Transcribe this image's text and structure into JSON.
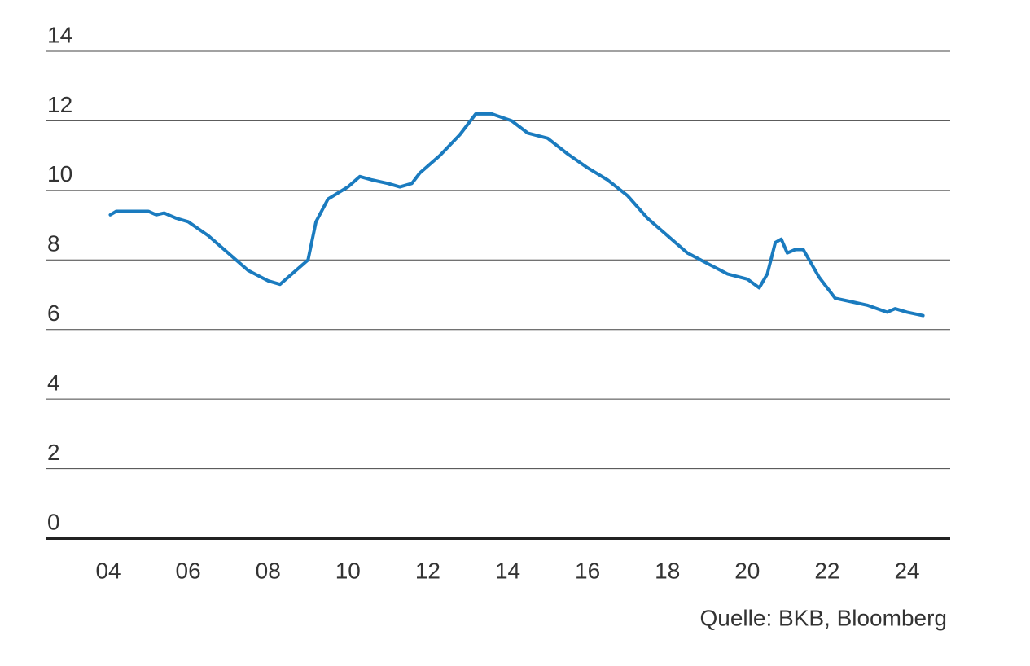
{
  "chart_data": {
    "type": "line",
    "source": "Quelle: BKB, Bloomberg",
    "x": [
      4.05,
      4.2,
      5.0,
      5.2,
      5.4,
      5.5,
      5.7,
      6.0,
      6.5,
      7.0,
      7.5,
      8.0,
      8.3,
      8.5,
      9.0,
      9.2,
      9.5,
      10.0,
      10.3,
      10.6,
      11.0,
      11.3,
      11.6,
      11.8,
      12.3,
      12.8,
      13.2,
      13.6,
      14.1,
      14.5,
      15.0,
      15.5,
      16.0,
      16.5,
      17.0,
      17.5,
      18.0,
      18.5,
      19.0,
      19.5,
      20.0,
      20.3,
      20.5,
      20.7,
      20.85,
      21.0,
      21.2,
      21.4,
      21.8,
      22.2,
      22.6,
      23.0,
      23.5,
      23.7,
      24.0,
      24.4
    ],
    "values": [
      9.3,
      9.4,
      9.4,
      9.3,
      9.35,
      9.3,
      9.2,
      9.1,
      8.7,
      8.2,
      7.7,
      7.4,
      7.3,
      7.5,
      8.0,
      9.1,
      9.75,
      10.1,
      10.4,
      10.3,
      10.2,
      10.1,
      10.2,
      10.5,
      11.0,
      11.6,
      12.2,
      12.2,
      12.0,
      11.65,
      11.5,
      11.05,
      10.65,
      10.3,
      9.85,
      9.2,
      8.7,
      8.2,
      7.9,
      7.6,
      7.45,
      7.2,
      7.6,
      8.5,
      8.6,
      8.2,
      8.3,
      8.3,
      7.5,
      6.9,
      6.8,
      6.7,
      6.5,
      6.6,
      6.5,
      6.4
    ],
    "color": "#1a7bbf",
    "xlim": [
      2.45,
      25.08
    ],
    "xticks": [
      {
        "value": 4,
        "label": "04"
      },
      {
        "value": 6,
        "label": "06"
      },
      {
        "value": 8,
        "label": "08"
      },
      10,
      12,
      14,
      16,
      18,
      20,
      22,
      24
    ],
    "ylim": [
      0,
      14
    ],
    "yticks": [
      0,
      2,
      4,
      6,
      8,
      10,
      12,
      14
    ],
    "grid": true
  }
}
